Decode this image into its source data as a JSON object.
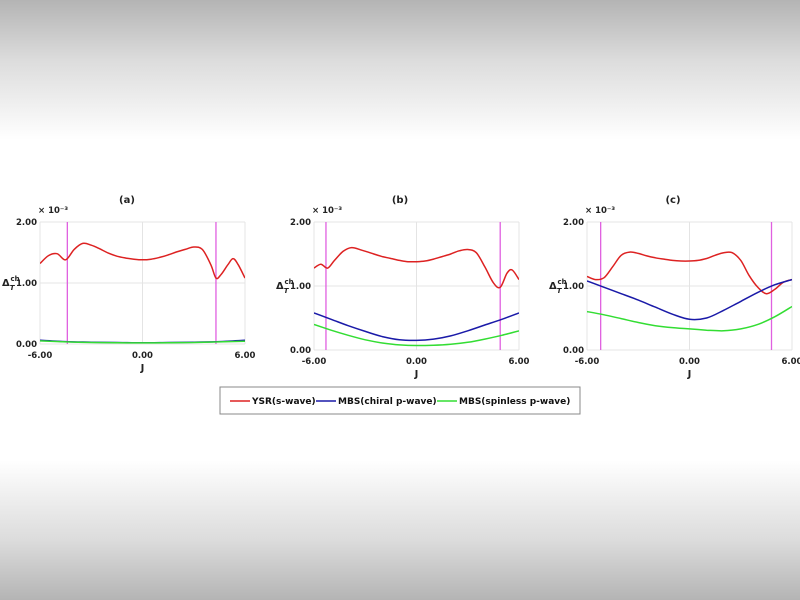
{
  "figure": {
    "ylabel_main": "Δ",
    "ylabel_sub": "T",
    "ylabel_sup": "ch",
    "exponent": "× 10⁻³"
  },
  "legend": [
    {
      "label": "YSR(s-wave)",
      "color": "#dd2222"
    },
    {
      "label": "MBS(chiral p-wave)",
      "color": "#1a1aa8"
    },
    {
      "label": "MBS(spinless p-wave)",
      "color": "#33dd33"
    }
  ],
  "chart_data": [
    {
      "type": "line",
      "title": "(a)",
      "xlabel": "J",
      "xlim": [
        -6,
        6
      ],
      "ylim": [
        0,
        2
      ],
      "xticks": [
        "-6.00",
        "0.00",
        "6.00"
      ],
      "yticks": [
        "0.00",
        "1.00",
        "2.00"
      ],
      "ytick_values": [
        0,
        1,
        2
      ],
      "vlines": [
        -4.4,
        4.3
      ],
      "series": [
        {
          "name": "YSR(s-wave)",
          "color": "#dd2222",
          "x": [
            -6,
            -5.5,
            -5,
            -4.5,
            -4,
            -3.5,
            -3,
            -2.5,
            -2,
            -1.5,
            -1,
            -0.5,
            0,
            0.5,
            1,
            1.5,
            2,
            2.5,
            3,
            3.5,
            4,
            4.3,
            4.6,
            5,
            5.3,
            5.6,
            6
          ],
          "y": [
            1.32,
            1.45,
            1.48,
            1.38,
            1.55,
            1.65,
            1.62,
            1.56,
            1.49,
            1.44,
            1.41,
            1.39,
            1.38,
            1.39,
            1.42,
            1.46,
            1.51,
            1.55,
            1.59,
            1.55,
            1.3,
            1.08,
            1.14,
            1.3,
            1.4,
            1.3,
            1.08
          ]
        },
        {
          "name": "MBS(chiral p-wave)",
          "color": "#1a1aa8",
          "x": [
            -6,
            -4.5,
            -3,
            -1.5,
            0,
            1.5,
            3,
            4.5,
            6
          ],
          "y": [
            0.06,
            0.04,
            0.03,
            0.025,
            0.02,
            0.025,
            0.03,
            0.04,
            0.06
          ]
        },
        {
          "name": "MBS(spinless p-wave)",
          "color": "#33dd33",
          "x": [
            -6,
            -4.5,
            -3,
            -1.5,
            0,
            1.5,
            3,
            4.5,
            6
          ],
          "y": [
            0.05,
            0.035,
            0.025,
            0.02,
            0.018,
            0.02,
            0.025,
            0.035,
            0.045
          ]
        }
      ]
    },
    {
      "type": "line",
      "title": "(b)",
      "xlabel": "J",
      "xlim": [
        -6,
        6
      ],
      "ylim": [
        0,
        2
      ],
      "xticks": [
        "-6.00",
        "0.00",
        "6.00"
      ],
      "yticks": [
        "0.00",
        "1.00",
        "2.00"
      ],
      "ytick_values": [
        0,
        1,
        2
      ],
      "vlines": [
        -5.3,
        4.9
      ],
      "series": [
        {
          "name": "YSR(s-wave)",
          "color": "#dd2222",
          "x": [
            -6,
            -5.6,
            -5.2,
            -4.8,
            -4.3,
            -3.8,
            -3.2,
            -2.5,
            -2,
            -1.5,
            -1,
            -0.5,
            0,
            0.5,
            1,
            1.5,
            2,
            2.5,
            3,
            3.5,
            4,
            4.5,
            4.9,
            5.3,
            5.6,
            6
          ],
          "y": [
            1.28,
            1.34,
            1.28,
            1.4,
            1.54,
            1.6,
            1.56,
            1.5,
            1.46,
            1.43,
            1.4,
            1.38,
            1.38,
            1.39,
            1.42,
            1.46,
            1.5,
            1.55,
            1.57,
            1.52,
            1.3,
            1.05,
            0.98,
            1.2,
            1.25,
            1.1
          ]
        },
        {
          "name": "MBS(chiral p-wave)",
          "color": "#1a1aa8",
          "x": [
            -6,
            -5,
            -4,
            -3,
            -2,
            -1,
            0,
            1,
            2,
            3,
            4,
            5,
            6
          ],
          "y": [
            0.58,
            0.48,
            0.38,
            0.29,
            0.21,
            0.16,
            0.15,
            0.17,
            0.22,
            0.3,
            0.39,
            0.48,
            0.58
          ]
        },
        {
          "name": "MBS(spinless p-wave)",
          "color": "#33dd33",
          "x": [
            -6,
            -5,
            -4,
            -3,
            -2,
            -1,
            0,
            1,
            2,
            3,
            4,
            5,
            6
          ],
          "y": [
            0.4,
            0.31,
            0.23,
            0.16,
            0.11,
            0.08,
            0.07,
            0.075,
            0.09,
            0.12,
            0.17,
            0.23,
            0.3
          ]
        }
      ]
    },
    {
      "type": "line",
      "title": "(c)",
      "xlabel": "J",
      "xlim": [
        -6,
        6
      ],
      "ylim": [
        0,
        2
      ],
      "xticks": [
        "-6.00",
        "0.00",
        "6.00"
      ],
      "yticks": [
        "0.00",
        "1.00",
        "2.00"
      ],
      "ytick_values": [
        0,
        1,
        2
      ],
      "vlines": [
        -5.2,
        4.8
      ],
      "series": [
        {
          "name": "YSR(s-wave)",
          "color": "#dd2222",
          "x": [
            -6,
            -5.5,
            -5,
            -4.5,
            -4,
            -3.5,
            -3,
            -2.5,
            -2,
            -1.5,
            -1,
            -0.5,
            0,
            0.5,
            1,
            1.5,
            2,
            2.5,
            3,
            3.5,
            4,
            4.5,
            5,
            5.5,
            6
          ],
          "y": [
            1.15,
            1.1,
            1.13,
            1.3,
            1.48,
            1.53,
            1.51,
            1.47,
            1.44,
            1.42,
            1.4,
            1.39,
            1.39,
            1.4,
            1.43,
            1.48,
            1.52,
            1.52,
            1.4,
            1.16,
            0.98,
            0.88,
            0.95,
            1.06,
            1.1
          ]
        },
        {
          "name": "MBS(chiral p-wave)",
          "color": "#1a1aa8",
          "x": [
            -6,
            -5,
            -4,
            -3,
            -2,
            -1,
            0,
            1,
            2,
            3,
            4,
            5,
            6
          ],
          "y": [
            1.08,
            0.98,
            0.88,
            0.78,
            0.67,
            0.56,
            0.48,
            0.5,
            0.62,
            0.76,
            0.9,
            1.02,
            1.1
          ]
        },
        {
          "name": "MBS(spinless p-wave)",
          "color": "#33dd33",
          "x": [
            -6,
            -5,
            -4,
            -3,
            -2,
            -1,
            0,
            1,
            2,
            3,
            4,
            5,
            6
          ],
          "y": [
            0.6,
            0.55,
            0.49,
            0.43,
            0.38,
            0.35,
            0.33,
            0.31,
            0.3,
            0.33,
            0.4,
            0.52,
            0.68
          ]
        }
      ]
    }
  ]
}
